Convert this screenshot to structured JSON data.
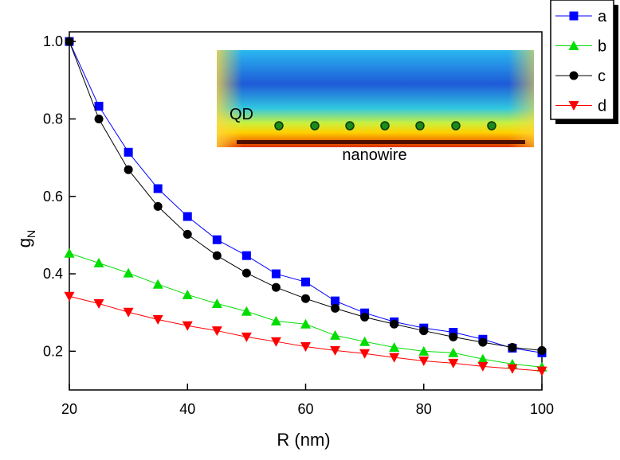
{
  "chart_data": {
    "type": "line",
    "x_label": "R (nm)",
    "y_label": "g",
    "y_label_sub": "N",
    "x": [
      20,
      25,
      30,
      35,
      40,
      45,
      50,
      55,
      60,
      65,
      70,
      75,
      80,
      85,
      90,
      95,
      100
    ],
    "series": [
      {
        "name": "a",
        "color": "#0000ff",
        "marker": "square",
        "values": [
          1.0,
          0.833,
          0.714,
          0.62,
          0.548,
          0.488,
          0.447,
          0.4,
          0.379,
          0.33,
          0.299,
          0.276,
          0.26,
          0.249,
          0.231,
          0.208,
          0.196
        ]
      },
      {
        "name": "b",
        "color": "#00dd00",
        "marker": "triangle-up",
        "values": [
          0.453,
          0.428,
          0.402,
          0.373,
          0.346,
          0.323,
          0.303,
          0.278,
          0.27,
          0.241,
          0.225,
          0.21,
          0.2,
          0.196,
          0.18,
          0.167,
          0.159
        ]
      },
      {
        "name": "c",
        "color": "#000000",
        "marker": "circle",
        "values": [
          1.0,
          0.8,
          0.669,
          0.574,
          0.502,
          0.447,
          0.402,
          0.365,
          0.336,
          0.311,
          0.288,
          0.27,
          0.253,
          0.237,
          0.223,
          0.21,
          0.202
        ]
      },
      {
        "name": "d",
        "color": "#ff0000",
        "marker": "triangle-down",
        "values": [
          0.342,
          0.323,
          0.301,
          0.282,
          0.266,
          0.253,
          0.237,
          0.225,
          0.212,
          0.202,
          0.194,
          0.184,
          0.175,
          0.169,
          0.161,
          0.155,
          0.149
        ]
      }
    ],
    "xlim": [
      20,
      100
    ],
    "xticks": [
      20,
      40,
      60,
      80,
      100
    ],
    "ylim": [
      0.1,
      1.025
    ],
    "yticks": [
      0.2,
      0.4,
      0.6,
      0.8,
      {
        "value": 1,
        "label": "1.0"
      }
    ],
    "legend": "outside-top-right",
    "inset_labels": [
      "QD",
      "nanowire"
    ]
  }
}
